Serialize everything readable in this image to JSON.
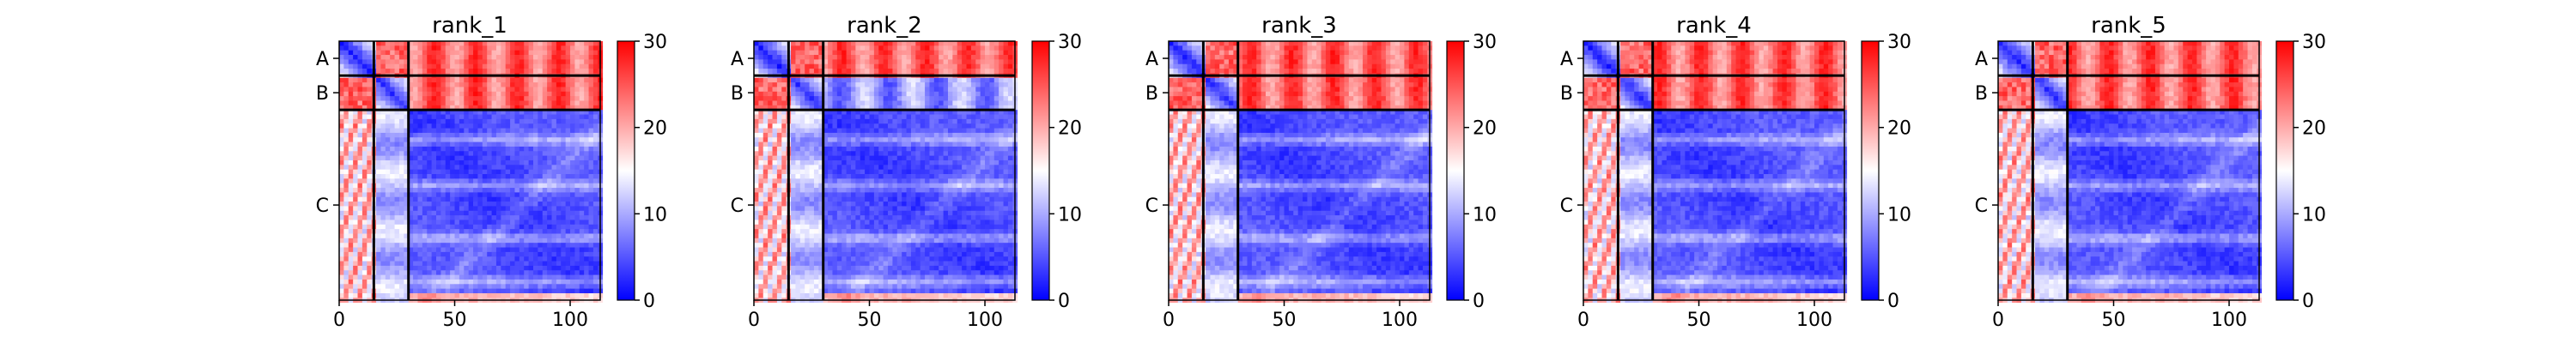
{
  "chart_data": [
    {
      "type": "heatmap",
      "title": "rank_1",
      "xticks": [
        0,
        50,
        100
      ],
      "xlim": [
        0,
        113
      ],
      "ylim": [
        0,
        113
      ],
      "chain_boundaries": [
        0,
        15,
        30,
        113
      ],
      "chain_labels": [
        "A",
        "B",
        "C"
      ],
      "colorbar": {
        "min": 0,
        "max": 30,
        "ticks": [
          0,
          10,
          20,
          30
        ],
        "colors": [
          "#0000ff",
          "#ffffff",
          "#ff0000"
        ]
      }
    },
    {
      "type": "heatmap",
      "title": "rank_2",
      "xticks": [
        0,
        50,
        100
      ],
      "xlim": [
        0,
        113
      ],
      "ylim": [
        0,
        113
      ],
      "chain_boundaries": [
        0,
        15,
        30,
        113
      ],
      "chain_labels": [
        "A",
        "B",
        "C"
      ],
      "colorbar": {
        "min": 0,
        "max": 30,
        "ticks": [
          0,
          10,
          20,
          30
        ],
        "colors": [
          "#0000ff",
          "#ffffff",
          "#ff0000"
        ]
      }
    },
    {
      "type": "heatmap",
      "title": "rank_3",
      "xticks": [
        0,
        50,
        100
      ],
      "xlim": [
        0,
        113
      ],
      "ylim": [
        0,
        113
      ],
      "chain_boundaries": [
        0,
        15,
        30,
        113
      ],
      "chain_labels": [
        "A",
        "B",
        "C"
      ],
      "colorbar": {
        "min": 0,
        "max": 30,
        "ticks": [
          0,
          10,
          20,
          30
        ],
        "colors": [
          "#0000ff",
          "#ffffff",
          "#ff0000"
        ]
      }
    },
    {
      "type": "heatmap",
      "title": "rank_4",
      "xticks": [
        0,
        50,
        100
      ],
      "xlim": [
        0,
        113
      ],
      "ylim": [
        0,
        113
      ],
      "chain_boundaries": [
        0,
        15,
        30,
        113
      ],
      "chain_labels": [
        "A",
        "B",
        "C"
      ],
      "colorbar": {
        "min": 0,
        "max": 30,
        "ticks": [
          0,
          10,
          20,
          30
        ],
        "colors": [
          "#0000ff",
          "#ffffff",
          "#ff0000"
        ]
      }
    },
    {
      "type": "heatmap",
      "title": "rank_5",
      "xticks": [
        0,
        50,
        100
      ],
      "xlim": [
        0,
        113
      ],
      "ylim": [
        0,
        113
      ],
      "chain_boundaries": [
        0,
        15,
        30,
        113
      ],
      "chain_labels": [
        "A",
        "B",
        "C"
      ],
      "colorbar": {
        "min": 0,
        "max": 30,
        "ticks": [
          0,
          10,
          20,
          30
        ],
        "colors": [
          "#0000ff",
          "#ffffff",
          "#ff0000"
        ]
      }
    }
  ]
}
